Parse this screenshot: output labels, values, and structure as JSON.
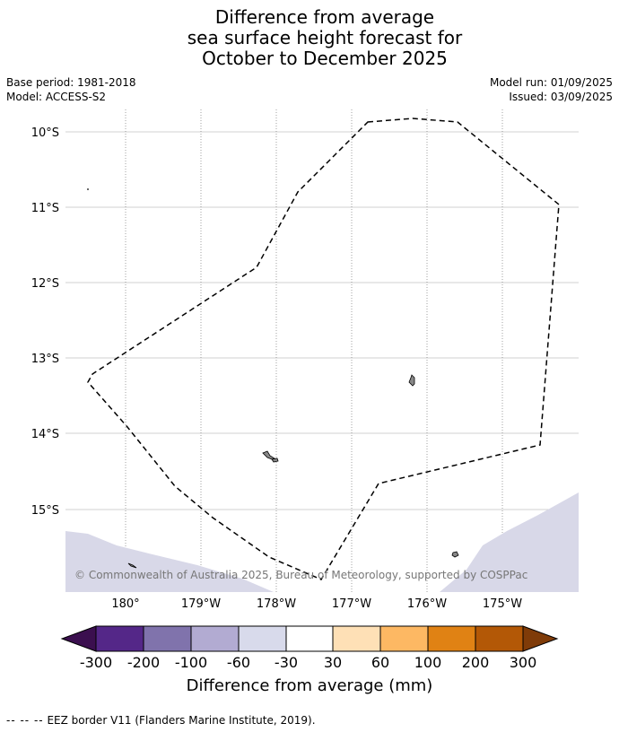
{
  "title": {
    "line1": "Difference from average",
    "line2": "sea surface height forecast for",
    "line3": "October to December 2025"
  },
  "meta_left": {
    "base_period": "Base period: 1981-2018",
    "model": "Model: ACCESS-S2"
  },
  "meta_right": {
    "model_run": "Model run: 01/09/2025",
    "issued": "Issued: 03/09/2025"
  },
  "map": {
    "copyright": "© Commonwealth of Australia 2025, Bureau of Meteorology, supported by COSPPac",
    "lat_labels": [
      "10°S",
      "11°S",
      "12°S",
      "13°S",
      "14°S",
      "15°S"
    ],
    "lon_labels": [
      "180°",
      "179°W",
      "178°W",
      "177°W",
      "176°W",
      "175°W"
    ],
    "anomaly_fill_color": "#d8d8e8",
    "eez_line_color": "#000000"
  },
  "colorbar": {
    "label": "Difference from average (mm)",
    "ticks": [
      "-300",
      "-200",
      "-100",
      "-60",
      "-30",
      "30",
      "60",
      "100",
      "200",
      "300"
    ],
    "under_color": "#3b0f4f",
    "over_color": "#7f3b08",
    "bin_colors": [
      "#542788",
      "#8073ac",
      "#b2abd2",
      "#d8daeb",
      "#ffffff",
      "#fee0b6",
      "#fdb863",
      "#e08214",
      "#b35806"
    ]
  },
  "footnote": {
    "dash": "-- -- --",
    "text": "EEZ border V11 (Flanders Marine Institute, 2019)."
  }
}
